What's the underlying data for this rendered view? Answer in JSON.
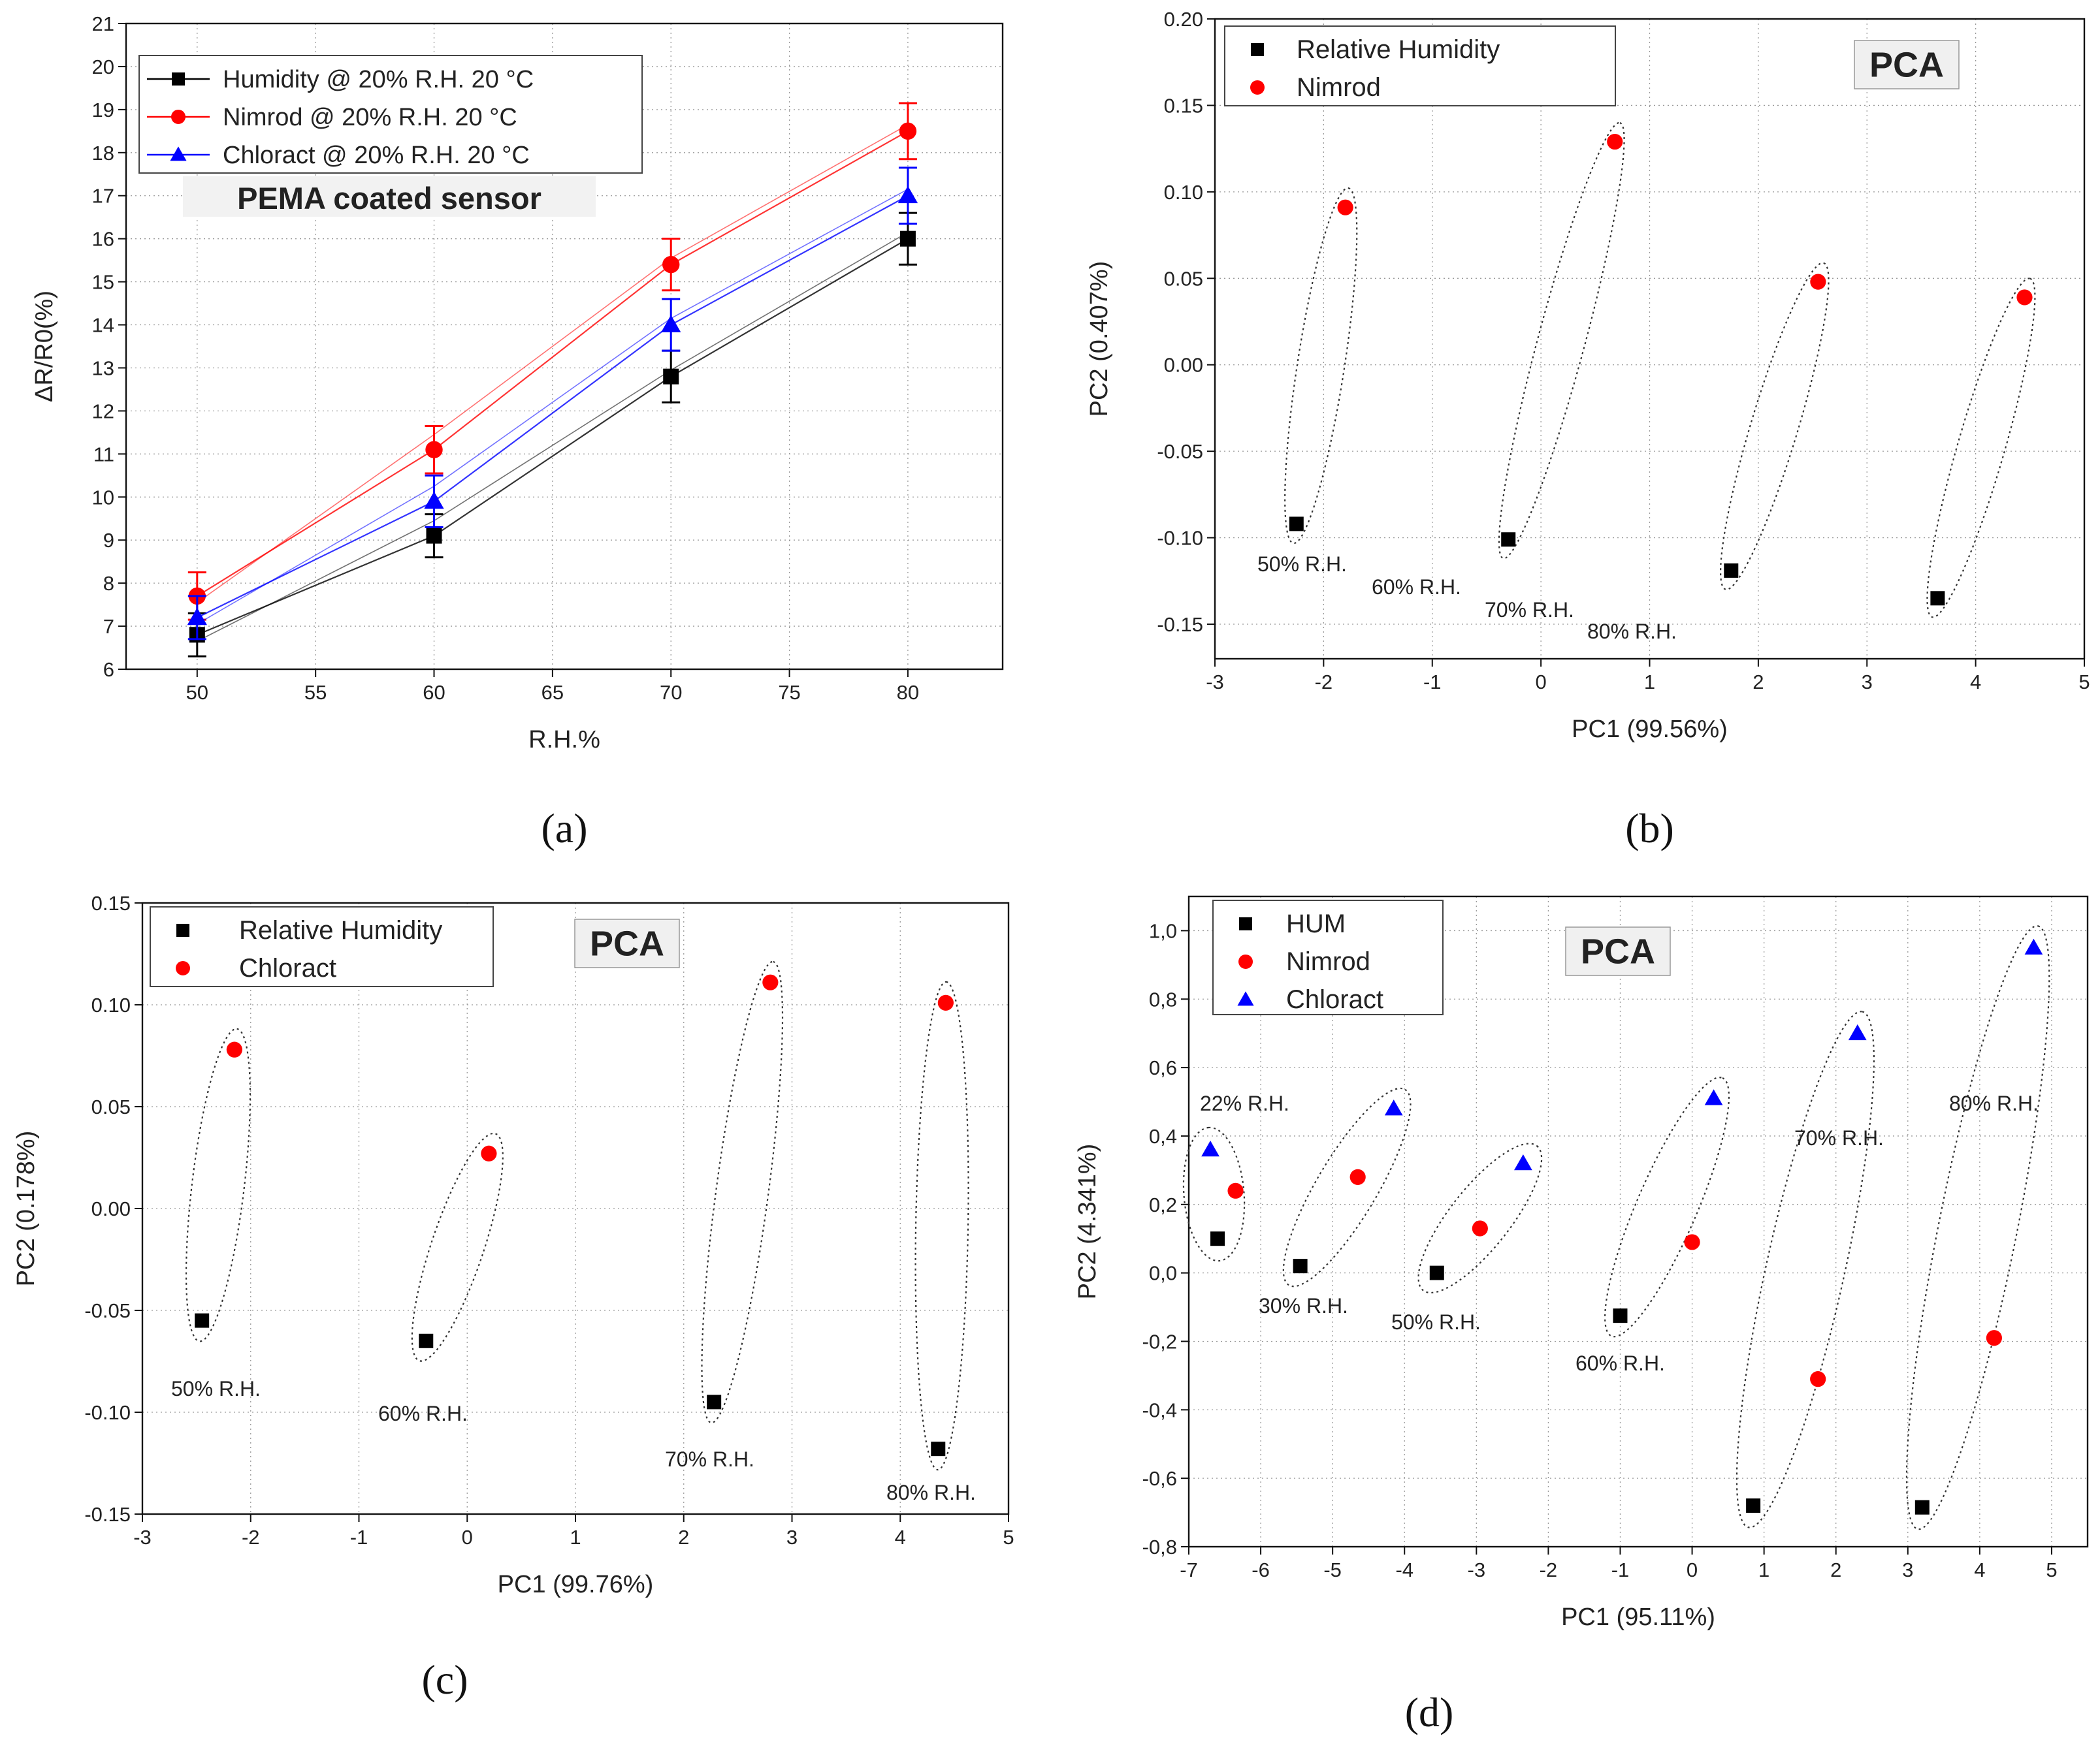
{
  "chart_data": [
    {
      "panel_label": "(a)",
      "type": "line",
      "xlabel": "R.H.%",
      "ylabel": "ΔR/R0(%)",
      "xlim": [
        47,
        84
      ],
      "ylim": [
        6,
        21
      ],
      "xticks": [
        "50",
        "55",
        "60",
        "65",
        "70",
        "75",
        "80"
      ],
      "yticks": [
        "6",
        "7",
        "8",
        "9",
        "10",
        "11",
        "12",
        "13",
        "14",
        "15",
        "16",
        "17",
        "18",
        "19",
        "20",
        "21"
      ],
      "grid": true,
      "legend_position": "top-left",
      "annotation": "PEMA coated sensor",
      "x": [
        50,
        60,
        70,
        80
      ],
      "series": [
        {
          "name": "Humidity @ 20% R.H. 20 °C",
          "color": "#000000",
          "marker": "square",
          "values": [
            6.8,
            9.1,
            12.8,
            16.0
          ],
          "errors": [
            0.5,
            0.5,
            0.6,
            0.6
          ]
        },
        {
          "name": "Nimrod @ 20% R.H. 20 °C",
          "color": "#ff0000",
          "marker": "circle",
          "values": [
            7.7,
            11.1,
            15.4,
            18.5
          ],
          "errors": [
            0.55,
            0.55,
            0.6,
            0.65
          ]
        },
        {
          "name": "Chloract @ 20% R.H. 20 °C",
          "color": "#0000ff",
          "marker": "triangle",
          "values": [
            7.2,
            9.9,
            14.0,
            17.0
          ],
          "errors": [
            0.5,
            0.6,
            0.6,
            0.65
          ]
        }
      ]
    },
    {
      "panel_label": "(b)",
      "type": "scatter",
      "title": "PCA",
      "xlabel": "PC1 (99.56%)",
      "ylabel": "PC2 (0.407%)",
      "xlim": [
        -3,
        5
      ],
      "ylim": [
        -0.17,
        0.2
      ],
      "xticks": [
        "-3",
        "-2",
        "-1",
        "0",
        "1",
        "2",
        "3",
        "4",
        "5"
      ],
      "yticks": [
        "-0.15",
        "-0.10",
        "-0.05",
        "0.00",
        "0.05",
        "0.10",
        "0.15",
        "0.20"
      ],
      "grid": true,
      "legend_position": "top-left",
      "series": [
        {
          "name": "Relative Humidity",
          "color": "#000000",
          "marker": "square",
          "x": [
            -2.25,
            -0.3,
            1.75,
            3.65
          ],
          "y": [
            -0.092,
            -0.101,
            -0.119,
            -0.135
          ]
        },
        {
          "name": "Nimrod",
          "color": "#ff0000",
          "marker": "circle",
          "x": [
            -1.8,
            0.68,
            2.55,
            4.45
          ],
          "y": [
            0.091,
            0.129,
            0.048,
            0.039
          ]
        }
      ],
      "group_labels": [
        "50% R.H.",
        "60% R.H.",
        "70% R.H.",
        "80% R.H."
      ]
    },
    {
      "panel_label": "(c)",
      "type": "scatter",
      "title": "PCA",
      "xlabel": "PC1 (99.76%)",
      "ylabel": "PC2 (0.178%)",
      "xlim": [
        -3,
        5
      ],
      "ylim": [
        -0.15,
        0.15
      ],
      "xticks": [
        "-3",
        "-2",
        "-1",
        "0",
        "1",
        "2",
        "3",
        "4",
        "5"
      ],
      "yticks": [
        "-0.15",
        "-0.10",
        "-0.05",
        "0.00",
        "0.05",
        "0.10",
        "0.15"
      ],
      "grid": true,
      "legend_position": "top-left",
      "series": [
        {
          "name": "Relative Humidity",
          "color": "#000000",
          "marker": "square",
          "x": [
            -2.45,
            -0.38,
            2.28,
            4.35
          ],
          "y": [
            -0.055,
            -0.065,
            -0.095,
            -0.118
          ]
        },
        {
          "name": "Chloract",
          "color": "#ff0000",
          "marker": "circle",
          "x": [
            -2.15,
            0.2,
            2.8,
            4.42
          ],
          "y": [
            0.078,
            0.027,
            0.111,
            0.101
          ]
        }
      ],
      "group_labels": [
        "50% R.H.",
        "60% R.H.",
        "70% R.H.",
        "80% R.H."
      ]
    },
    {
      "panel_label": "(d)",
      "type": "scatter",
      "title": "PCA",
      "xlabel": "PC1 (95.11%)",
      "ylabel": "PC2 (4.341%)",
      "xlim": [
        -7,
        5.5
      ],
      "ylim": [
        -0.8,
        1.1
      ],
      "xticks": [
        "-7",
        "-6",
        "-5",
        "-4",
        "-3",
        "-2",
        "-1",
        "0",
        "1",
        "2",
        "3",
        "4",
        "5"
      ],
      "yticks": [
        "-0,8",
        "-0,6",
        "-0,4",
        "-0,2",
        "0,0",
        "0,2",
        "0,4",
        "0,6",
        "0,8",
        "1,0"
      ],
      "grid": true,
      "legend_position": "top-left",
      "series": [
        {
          "name": "HUM",
          "color": "#000000",
          "marker": "square",
          "x": [
            -6.6,
            -5.45,
            -3.55,
            -1.0,
            0.85,
            3.2
          ],
          "y": [
            0.1,
            0.02,
            0.0,
            -0.125,
            -0.68,
            -0.685
          ]
        },
        {
          "name": "Nimrod",
          "color": "#ff0000",
          "marker": "circle",
          "x": [
            -6.35,
            -4.65,
            -2.95,
            0.0,
            1.75,
            4.2
          ],
          "y": [
            0.24,
            0.28,
            0.13,
            0.09,
            -0.31,
            -0.19
          ]
        },
        {
          "name": "Chloract",
          "color": "#0000ff",
          "marker": "triangle",
          "x": [
            -6.7,
            -4.15,
            -2.35,
            0.3,
            2.3,
            4.75
          ],
          "y": [
            0.36,
            0.48,
            0.32,
            0.51,
            0.7,
            0.95
          ]
        }
      ],
      "group_labels": [
        "22% R.H.",
        "30% R.H.",
        "50% R.H.",
        "60% R.H.",
        "70% R.H.",
        "80% R.H."
      ]
    }
  ]
}
